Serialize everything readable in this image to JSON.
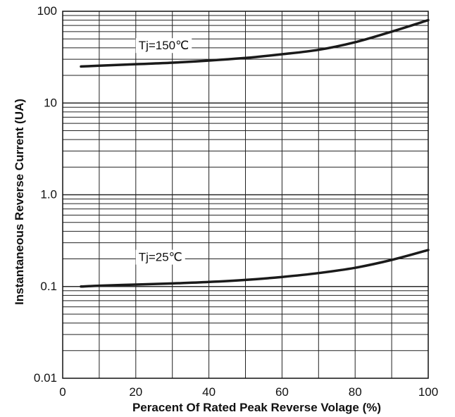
{
  "chart_data": {
    "type": "line",
    "title": "",
    "xlabel": "Peracent Of Rated Peak Reverse Volage (%)",
    "ylabel": "Instantaneous Reverse Current (UA)",
    "xlim": [
      0,
      100
    ],
    "ylim": [
      0.01,
      100
    ],
    "yscale": "log",
    "grid": true,
    "x_ticks": [
      {
        "value": 0,
        "label": "0"
      },
      {
        "value": 20,
        "label": "20"
      },
      {
        "value": 40,
        "label": "40"
      },
      {
        "value": 60,
        "label": "60"
      },
      {
        "value": 80,
        "label": "80"
      },
      {
        "value": 100,
        "label": "100"
      }
    ],
    "y_ticks": [
      {
        "value": 0.01,
        "label": "0.01"
      },
      {
        "value": 0.1,
        "label": "0.1"
      },
      {
        "value": 1,
        "label": "1.0"
      },
      {
        "value": 10,
        "label": "10"
      },
      {
        "value": 100,
        "label": "100"
      }
    ],
    "series": [
      {
        "name": "Tj=150℃",
        "x": [
          5,
          10,
          20,
          30,
          40,
          50,
          60,
          70,
          80,
          90,
          100
        ],
        "y": [
          25,
          25.5,
          26.5,
          27.5,
          29,
          31,
          34,
          38,
          46,
          60,
          80
        ]
      },
      {
        "name": "Tj=25℃",
        "x": [
          5,
          10,
          20,
          30,
          40,
          50,
          60,
          70,
          80,
          90,
          100
        ],
        "y": [
          0.1,
          0.102,
          0.105,
          0.108,
          0.112,
          0.118,
          0.127,
          0.14,
          0.16,
          0.195,
          0.25
        ]
      }
    ]
  }
}
